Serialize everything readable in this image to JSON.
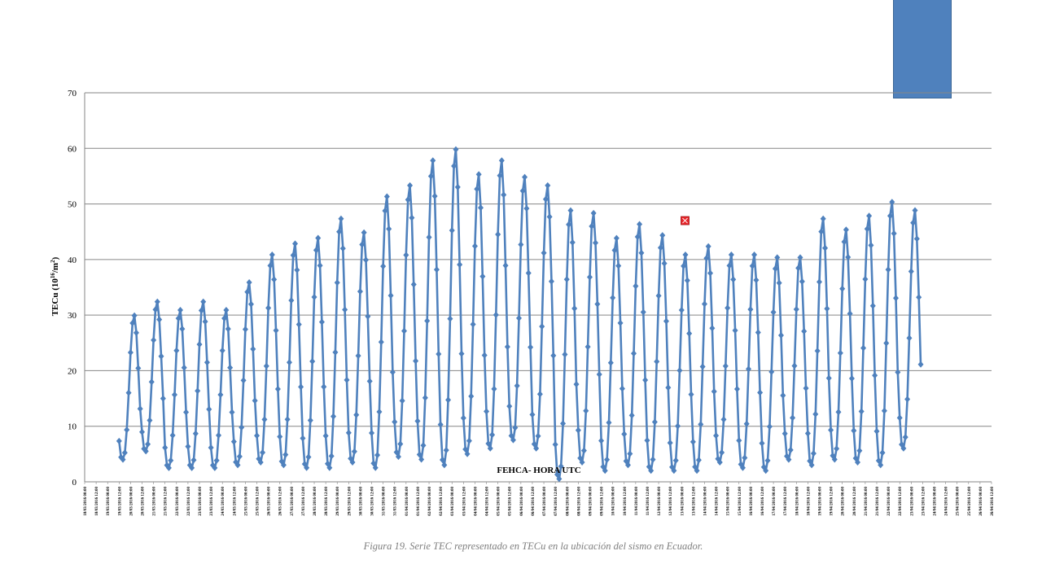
{
  "caption": "Figura 19. Serie TEC representado  en TECu en la ubicación del sismo  en Ecuador.",
  "colors": {
    "series": "#4f81bd",
    "highlight": "#e8262b",
    "grid": "#868686",
    "decor_bar": "#4f81bd"
  },
  "chart_data": {
    "type": "line",
    "xlabel": "FEHCA- HORA UTC",
    "ylabel_main": "TECu (10",
    "ylabel_sup": "16",
    "ylabel_mid": "/m",
    "ylabel_sup2": "2",
    "ylabel_end": ")",
    "ylim": [
      0,
      70
    ],
    "yticks": [
      "0",
      "10",
      "20",
      "30",
      "40",
      "50",
      "60",
      "70"
    ],
    "grid": true,
    "legend": "none",
    "xticks": [
      "18/03/2016 00:00",
      "18/03/2016 12:00",
      "19/03/2016 00:00",
      "19/03/2016 12:00",
      "20/03/2016 00:00",
      "20/03/2016 12:00",
      "21/03/2016 00:00",
      "21/03/2016 12:00",
      "22/03/2016 00:00",
      "22/03/2016 12:00",
      "23/03/2016 00:00",
      "23/03/2016 12:00",
      "24/03/2016 00:00",
      "24/03/2016 12:00",
      "25/03/2016 00:00",
      "25/03/2016 12:00",
      "26/03/2016 00:00",
      "26/03/2016 12:00",
      "27/03/2016 00:00",
      "27/03/2016 12:00",
      "28/03/2016 00:00",
      "28/03/2016 12:00",
      "29/03/2016 00:00",
      "29/03/2016 12:00",
      "30/03/2016 00:00",
      "30/03/2016 12:00",
      "31/03/2016 00:00",
      "31/03/2016 12:00",
      "01/04/2016 00:00",
      "01/04/2016 12:00",
      "02/04/2016 00:00",
      "02/04/2016 12:00",
      "03/04/2016 00:00",
      "03/04/2016 12:00",
      "04/04/2016 00:00",
      "04/04/2016 12:00",
      "05/04/2016 00:00",
      "05/04/2016 12:00",
      "06/04/2016 00:00",
      "06/04/2016 12:00",
      "07/04/2016 00:00",
      "07/04/2016 12:00",
      "08/04/2016 00:00",
      "08/04/2016 12:00",
      "09/04/2016 00:00",
      "09/04/2016 12:00",
      "10/04/2016 00:00",
      "10/04/2016 12:00",
      "11/04/2016 00:00",
      "11/04/2016 12:00",
      "12/04/2016 00:00",
      "12/04/2016 12:00",
      "13/04/2016 00:00",
      "13/04/2016 12:00",
      "14/04/2016 00:00",
      "14/04/2016 12:00",
      "15/04/2016 00:00",
      "15/04/2016 12:00",
      "16/04/2016 00:00",
      "16/04/2016 12:00",
      "17/04/2016 00:00",
      "17/04/2016 12:00",
      "18/04/2016 00:00",
      "18/04/2016 12:00",
      "19/04/2016 00:00",
      "19/04/2016 12:00",
      "20/04/2016 00:00",
      "20/04/2016 12:00",
      "21/04/2016 00:00",
      "21/04/2016 12:00",
      "22/04/2016 00:00",
      "22/04/2016 12:00",
      "23/04/2016 00:00",
      "23/04/2016 12:00",
      "24/04/2016 00:00",
      "24/04/2016 12:00",
      "25/04/2016 00:00",
      "25/04/2016 12:00",
      "26/04/2016 00:00",
      "26/04/2016 12:00"
    ],
    "series": [
      {
        "start_tick": 3.0,
        "points_per_day": 12,
        "daily_peaks": [
          30,
          32.5,
          31,
          32.5,
          31,
          36,
          41,
          43,
          44,
          47.5,
          45,
          51.5,
          53.5,
          58,
          60,
          55.5,
          58,
          55,
          53.5,
          49,
          48.5,
          44,
          46.5,
          44.5,
          41,
          42.5,
          41,
          41,
          40.5,
          40.5,
          47.5,
          45.5,
          48,
          50.5,
          49
        ],
        "daily_troughs": [
          4,
          5.5,
          2.5,
          2.5,
          2.5,
          3,
          3.5,
          3,
          2.5,
          2.5,
          3.5,
          2.5,
          4.5,
          4,
          3,
          5,
          6,
          7.5,
          6,
          0.5,
          3.5,
          2,
          3,
          2,
          2,
          2,
          3.5,
          2.5,
          2,
          4,
          3,
          4,
          3.5,
          3,
          6
        ]
      }
    ],
    "highlight_point": {
      "x_tick": 52.3,
      "y": 47
    }
  }
}
